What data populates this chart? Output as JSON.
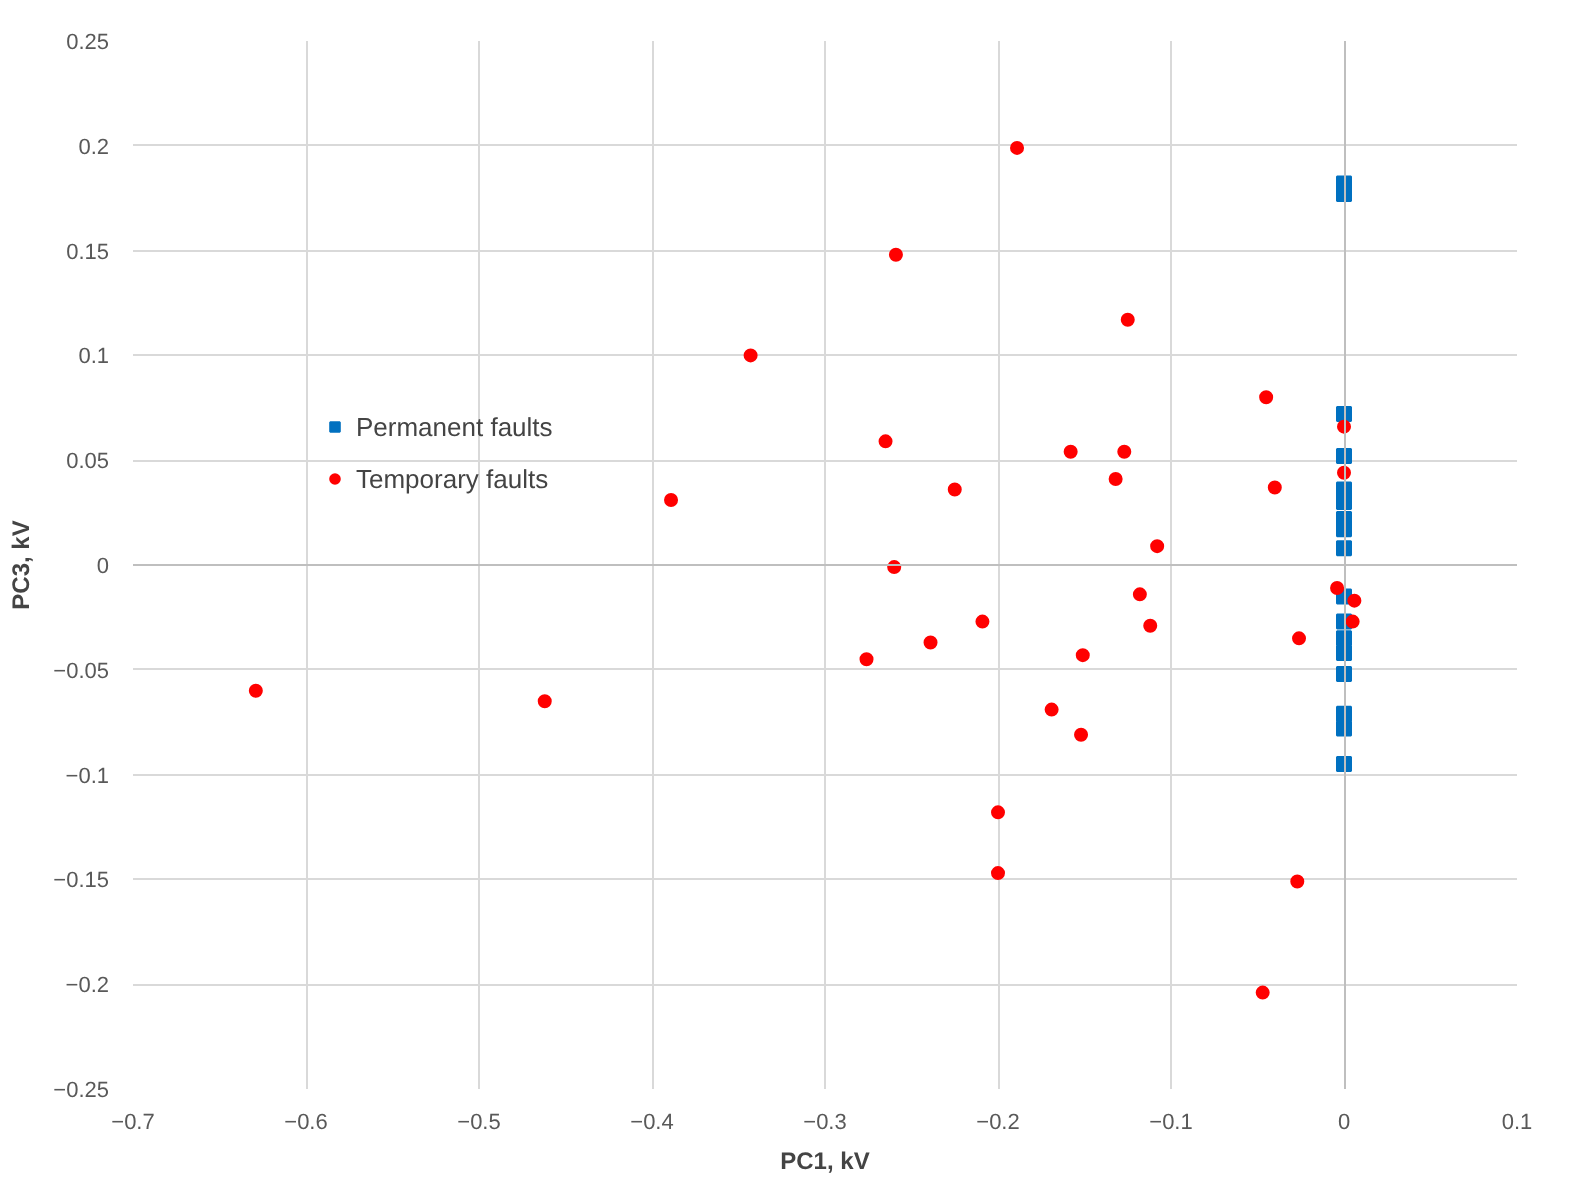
{
  "chart_data": {
    "type": "scatter",
    "xlabel": "PC1, kV",
    "ylabel": "PC3, kV",
    "xlim": [
      -0.7,
      0.1
    ],
    "xticks": [
      -0.7,
      -0.6,
      -0.5,
      -0.4,
      -0.3,
      -0.2,
      -0.1,
      0,
      0.1
    ],
    "ylim": [
      -0.25,
      0.25
    ],
    "yticks": [
      -0.25,
      -0.2,
      -0.15,
      -0.1,
      -0.05,
      0,
      0.05,
      0.1,
      0.15,
      0.2,
      0.25
    ],
    "grid": true,
    "legend": "left",
    "series": [
      {
        "name": "Permanent faults",
        "color": "#0070c0",
        "marker": "square",
        "x": [
          0,
          0,
          0,
          0,
          0,
          0,
          0,
          0,
          0,
          0,
          0,
          0,
          0,
          0,
          0,
          0,
          0
        ],
        "values": [
          0.182,
          0.177,
          0.072,
          0.052,
          0.036,
          0.03,
          0.022,
          0.017,
          0.008,
          -0.015,
          -0.027,
          -0.035,
          -0.042,
          -0.052,
          -0.071,
          -0.078,
          -0.095
        ]
      },
      {
        "name": "Temporary faults",
        "color": "#ff0000",
        "marker": "circle",
        "x": [
          -0.189,
          -0.259,
          -0.125,
          -0.343,
          -0.045,
          -0.265,
          -0.158,
          -0.127,
          -0.132,
          -0.04,
          -0.225,
          -0.389,
          -0.108,
          -0.26,
          -0.118,
          -0.209,
          -0.112,
          -0.239,
          -0.276,
          -0.151,
          -0.169,
          -0.152,
          -0.2,
          -0.2,
          -0.629,
          -0.462,
          0,
          0,
          -0.004,
          0.006,
          0.005,
          -0.026,
          -0.027,
          -0.047
        ],
        "values": [
          0.199,
          0.148,
          0.117,
          0.1,
          0.08,
          0.059,
          0.054,
          0.054,
          0.041,
          0.037,
          0.036,
          0.031,
          0.009,
          -0.001,
          -0.014,
          -0.027,
          -0.029,
          -0.037,
          -0.045,
          -0.043,
          -0.069,
          -0.081,
          -0.118,
          -0.147,
          -0.06,
          -0.065,
          0.066,
          0.044,
          -0.011,
          -0.017,
          -0.027,
          -0.035,
          -0.151,
          -0.204
        ]
      }
    ]
  }
}
